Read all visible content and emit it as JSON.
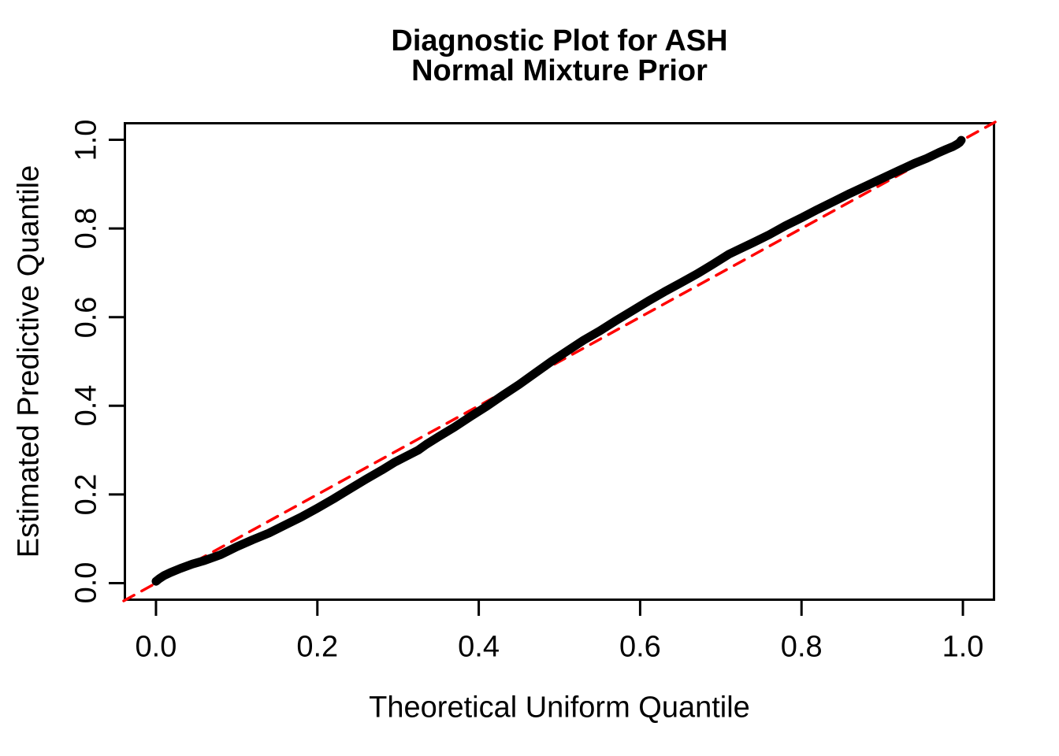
{
  "figure": {
    "title_line1": "Diagnostic Plot for ASH",
    "title_line2": "Normal Mixture Prior"
  },
  "colors": {
    "background": "#FFFFFF",
    "text": "#000000",
    "curve": "#000000",
    "reference_line": "#FF0000"
  },
  "chart_data": {
    "type": "line",
    "subtype": "qq-plot-uniform-diagnostic",
    "title": "Diagnostic Plot for ASH",
    "subtitle": "Normal Mixture Prior",
    "xlabel": "Theoretical Uniform Quantile",
    "ylabel": "Estimated Predictive Quantile",
    "xlim": [
      -0.04,
      1.04
    ],
    "ylim": [
      -0.04,
      1.04
    ],
    "grid": false,
    "legend": "none",
    "x_ticks": {
      "values": [
        0.0,
        0.2,
        0.4,
        0.6,
        0.8,
        1.0
      ],
      "labels": [
        "0.0",
        "0.2",
        "0.4",
        "0.6",
        "0.8",
        "1.0"
      ]
    },
    "y_ticks": {
      "values": [
        0.0,
        0.2,
        0.4,
        0.6,
        0.8,
        1.0
      ],
      "labels": [
        "0.0",
        "0.2",
        "0.4",
        "0.6",
        "0.8",
        "1.0"
      ]
    },
    "series": [
      {
        "name": "estimated-predictive-quantiles",
        "style": "solid",
        "color": "#000000",
        "line_width": 11,
        "points": [
          [
            0.0,
            0.004
          ],
          [
            0.004,
            0.01
          ],
          [
            0.01,
            0.017
          ],
          [
            0.018,
            0.024
          ],
          [
            0.03,
            0.033
          ],
          [
            0.045,
            0.043
          ],
          [
            0.06,
            0.051
          ],
          [
            0.08,
            0.064
          ],
          [
            0.1,
            0.082
          ],
          [
            0.12,
            0.098
          ],
          [
            0.14,
            0.113
          ],
          [
            0.16,
            0.131
          ],
          [
            0.18,
            0.149
          ],
          [
            0.2,
            0.169
          ],
          [
            0.22,
            0.19
          ],
          [
            0.24,
            0.212
          ],
          [
            0.26,
            0.234
          ],
          [
            0.28,
            0.255
          ],
          [
            0.295,
            0.272
          ],
          [
            0.31,
            0.286
          ],
          [
            0.325,
            0.3
          ],
          [
            0.335,
            0.313
          ],
          [
            0.35,
            0.33
          ],
          [
            0.37,
            0.352
          ],
          [
            0.39,
            0.376
          ],
          [
            0.41,
            0.399
          ],
          [
            0.43,
            0.424
          ],
          [
            0.45,
            0.448
          ],
          [
            0.47,
            0.474
          ],
          [
            0.49,
            0.5
          ],
          [
            0.51,
            0.524
          ],
          [
            0.53,
            0.548
          ],
          [
            0.55,
            0.569
          ],
          [
            0.57,
            0.592
          ],
          [
            0.59,
            0.614
          ],
          [
            0.61,
            0.636
          ],
          [
            0.63,
            0.657
          ],
          [
            0.65,
            0.677
          ],
          [
            0.67,
            0.697
          ],
          [
            0.69,
            0.719
          ],
          [
            0.71,
            0.742
          ],
          [
            0.725,
            0.755
          ],
          [
            0.74,
            0.768
          ],
          [
            0.76,
            0.786
          ],
          [
            0.78,
            0.806
          ],
          [
            0.8,
            0.824
          ],
          [
            0.82,
            0.843
          ],
          [
            0.84,
            0.861
          ],
          [
            0.86,
            0.879
          ],
          [
            0.88,
            0.896
          ],
          [
            0.9,
            0.913
          ],
          [
            0.92,
            0.93
          ],
          [
            0.94,
            0.947
          ],
          [
            0.955,
            0.958
          ],
          [
            0.97,
            0.971
          ],
          [
            0.98,
            0.979
          ],
          [
            0.988,
            0.985
          ],
          [
            0.993,
            0.99
          ],
          [
            0.996,
            0.994
          ],
          [
            0.998,
            0.999
          ]
        ]
      },
      {
        "name": "identity-reference-line",
        "style": "dashed",
        "color": "#FF0000",
        "line_width": 3.5,
        "points": [
          [
            -0.04,
            -0.04
          ],
          [
            1.04,
            1.04
          ]
        ]
      }
    ]
  }
}
